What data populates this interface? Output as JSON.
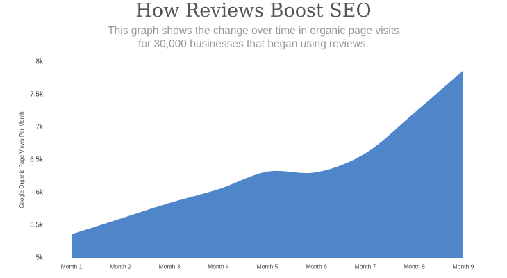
{
  "chart_data": {
    "type": "area",
    "title": "How Reviews Boost SEO",
    "subtitle": "This graph shows the change over time in organic page visits for 30,000 businesses that began using reviews.",
    "y_label": "Google Organic Page Views Per Month",
    "categories": [
      "Month 1",
      "Month 2",
      "Month 3",
      "Month 4",
      "Month 5",
      "Month 6",
      "Month 7",
      "Month 8",
      "Month 9"
    ],
    "values": [
      5360,
      5600,
      5840,
      6050,
      6320,
      6310,
      6600,
      7220,
      7870
    ],
    "color": "#4f86c9",
    "ylim": [
      5000,
      8000
    ],
    "yticks": [
      {
        "value": 5000,
        "label": "5k"
      },
      {
        "value": 5500,
        "label": "5.5k"
      },
      {
        "value": 6000,
        "label": "6k"
      },
      {
        "value": 6500,
        "label": "6.5k"
      },
      {
        "value": 7000,
        "label": "7k"
      },
      {
        "value": 7500,
        "label": "7.5k"
      },
      {
        "value": 8000,
        "label": "8k"
      }
    ],
    "grid": false
  }
}
